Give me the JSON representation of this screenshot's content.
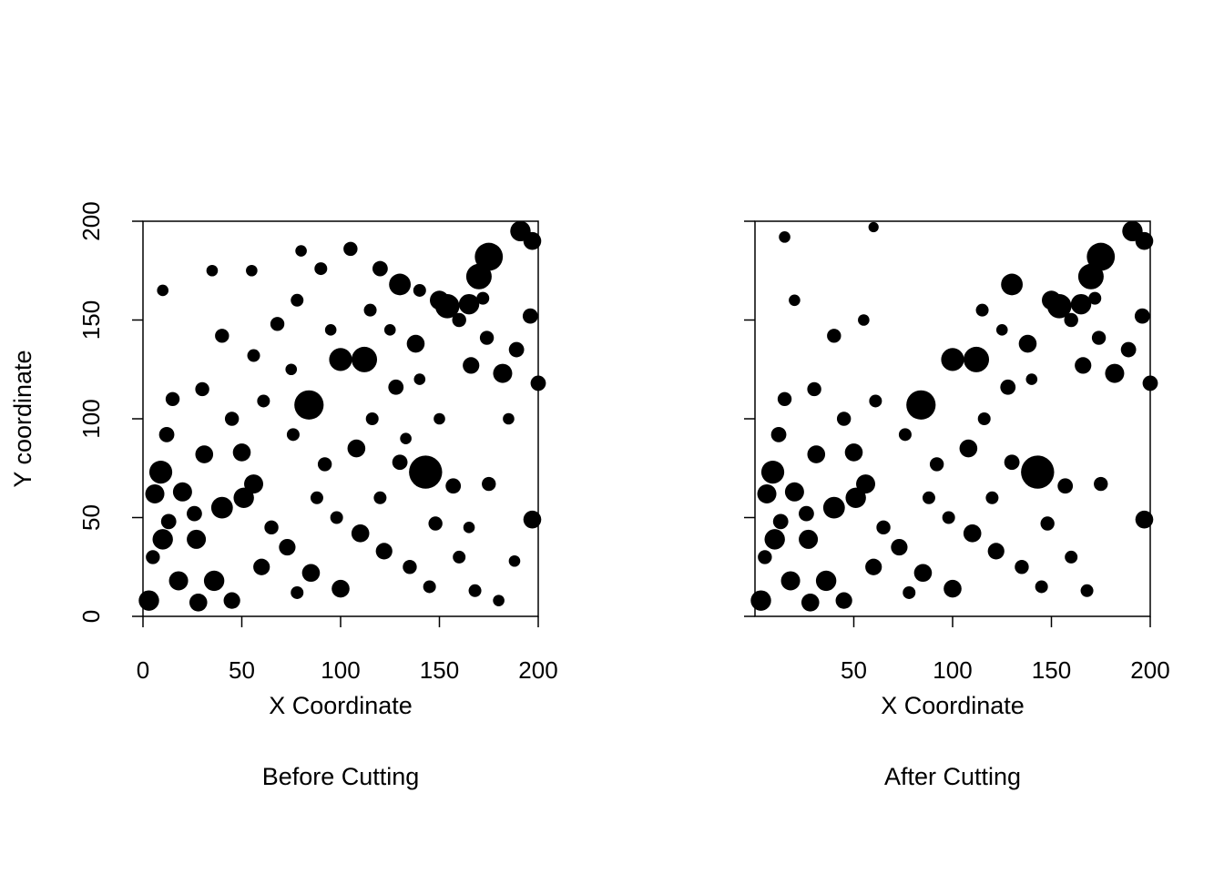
{
  "chart_data": [
    {
      "type": "scatter",
      "xlabel": "X Coordinate",
      "ylabel": "Y coordinate",
      "caption": "Before Cutting",
      "xlim": [
        0,
        200
      ],
      "ylim": [
        0,
        200
      ],
      "xticks": [
        "0",
        "50",
        "100",
        "150",
        "200"
      ],
      "yticks": [
        "0",
        "50",
        "100",
        "150",
        "200"
      ],
      "points": [
        [
          143,
          73,
          2.6
        ],
        [
          84,
          107,
          2.3
        ],
        [
          175,
          182,
          2.2
        ],
        [
          191,
          195,
          1.6
        ],
        [
          170,
          172,
          2.0
        ],
        [
          154,
          157,
          1.9
        ],
        [
          112,
          130,
          2.0
        ],
        [
          100,
          130,
          1.8
        ],
        [
          130,
          168,
          1.7
        ],
        [
          165,
          158,
          1.6
        ],
        [
          182,
          123,
          1.5
        ],
        [
          197,
          49,
          1.4
        ],
        [
          200,
          118,
          1.2
        ],
        [
          197,
          190,
          1.4
        ],
        [
          9,
          73,
          1.8
        ],
        [
          3,
          8,
          1.6
        ],
        [
          18,
          18,
          1.5
        ],
        [
          10,
          39,
          1.6
        ],
        [
          6,
          62,
          1.5
        ],
        [
          20,
          63,
          1.5
        ],
        [
          27,
          39,
          1.5
        ],
        [
          31,
          82,
          1.4
        ],
        [
          40,
          55,
          1.7
        ],
        [
          51,
          60,
          1.6
        ],
        [
          50,
          83,
          1.4
        ],
        [
          56,
          67,
          1.5
        ],
        [
          36,
          18,
          1.6
        ],
        [
          45,
          8,
          1.3
        ],
        [
          28,
          7,
          1.4
        ],
        [
          60,
          25,
          1.3
        ],
        [
          73,
          35,
          1.3
        ],
        [
          85,
          22,
          1.4
        ],
        [
          100,
          14,
          1.4
        ],
        [
          110,
          42,
          1.4
        ],
        [
          122,
          33,
          1.3
        ],
        [
          108,
          85,
          1.4
        ],
        [
          130,
          78,
          1.2
        ],
        [
          157,
          66,
          1.2
        ],
        [
          175,
          67,
          1.1
        ],
        [
          128,
          116,
          1.2
        ],
        [
          138,
          138,
          1.4
        ],
        [
          150,
          160,
          1.5
        ],
        [
          160,
          150,
          1.1
        ],
        [
          166,
          127,
          1.3
        ],
        [
          174,
          141,
          1.1
        ],
        [
          189,
          135,
          1.2
        ],
        [
          196,
          152,
          1.2
        ],
        [
          172,
          161,
          1.0
        ],
        [
          120,
          176,
          1.2
        ],
        [
          105,
          186,
          1.1
        ],
        [
          90,
          176,
          1.0
        ],
        [
          78,
          160,
          1.0
        ],
        [
          68,
          148,
          1.1
        ],
        [
          56,
          132,
          1.0
        ],
        [
          40,
          142,
          1.1
        ],
        [
          30,
          115,
          1.1
        ],
        [
          15,
          110,
          1.1
        ],
        [
          12,
          92,
          1.2
        ],
        [
          26,
          52,
          1.2
        ],
        [
          13,
          48,
          1.2
        ],
        [
          5,
          30,
          1.1
        ],
        [
          45,
          100,
          1.1
        ],
        [
          61,
          109,
          1.0
        ],
        [
          76,
          92,
          1.0
        ],
        [
          92,
          77,
          1.1
        ],
        [
          116,
          100,
          1.0
        ],
        [
          133,
          90,
          0.9
        ],
        [
          148,
          47,
          1.1
        ],
        [
          160,
          30,
          1.0
        ],
        [
          168,
          13,
          1.0
        ],
        [
          180,
          8,
          0.9
        ],
        [
          188,
          28,
          0.9
        ],
        [
          145,
          15,
          1.0
        ],
        [
          135,
          25,
          1.1
        ],
        [
          78,
          12,
          1.0
        ],
        [
          65,
          45,
          1.1
        ],
        [
          88,
          60,
          1.0
        ],
        [
          98,
          50,
          1.0
        ],
        [
          150,
          100,
          0.9
        ],
        [
          120,
          60,
          1.0
        ],
        [
          165,
          45,
          0.9
        ],
        [
          115,
          155,
          1.0
        ],
        [
          95,
          145,
          0.9
        ],
        [
          140,
          120,
          0.9
        ],
        [
          185,
          100,
          0.9
        ],
        [
          75,
          125,
          0.9
        ],
        [
          55,
          175,
          0.9
        ],
        [
          35,
          175,
          0.9
        ],
        [
          10,
          165,
          0.9
        ],
        [
          80,
          185,
          0.9
        ],
        [
          140,
          165,
          1.0
        ],
        [
          125,
          145,
          0.9
        ]
      ]
    },
    {
      "type": "scatter",
      "xlabel": "X Coordinate",
      "caption": "After Cutting",
      "xlim": [
        0,
        200
      ],
      "ylim": [
        0,
        200
      ],
      "xticks": [
        "50",
        "100",
        "150",
        "200"
      ],
      "yticks": [],
      "points": [
        [
          143,
          73,
          2.6
        ],
        [
          84,
          107,
          2.3
        ],
        [
          175,
          182,
          2.2
        ],
        [
          191,
          195,
          1.6
        ],
        [
          170,
          172,
          2.0
        ],
        [
          154,
          157,
          1.9
        ],
        [
          112,
          130,
          2.0
        ],
        [
          100,
          130,
          1.8
        ],
        [
          130,
          168,
          1.7
        ],
        [
          165,
          158,
          1.6
        ],
        [
          182,
          123,
          1.5
        ],
        [
          197,
          49,
          1.4
        ],
        [
          200,
          118,
          1.2
        ],
        [
          197,
          190,
          1.4
        ],
        [
          9,
          73,
          1.8
        ],
        [
          3,
          8,
          1.6
        ],
        [
          18,
          18,
          1.5
        ],
        [
          10,
          39,
          1.6
        ],
        [
          6,
          62,
          1.5
        ],
        [
          20,
          63,
          1.5
        ],
        [
          27,
          39,
          1.5
        ],
        [
          31,
          82,
          1.4
        ],
        [
          40,
          55,
          1.7
        ],
        [
          51,
          60,
          1.6
        ],
        [
          50,
          83,
          1.4
        ],
        [
          56,
          67,
          1.5
        ],
        [
          36,
          18,
          1.6
        ],
        [
          45,
          8,
          1.3
        ],
        [
          28,
          7,
          1.4
        ],
        [
          60,
          25,
          1.3
        ],
        [
          73,
          35,
          1.3
        ],
        [
          85,
          22,
          1.4
        ],
        [
          100,
          14,
          1.4
        ],
        [
          110,
          42,
          1.4
        ],
        [
          122,
          33,
          1.3
        ],
        [
          108,
          85,
          1.4
        ],
        [
          130,
          78,
          1.2
        ],
        [
          157,
          66,
          1.2
        ],
        [
          175,
          67,
          1.1
        ],
        [
          128,
          116,
          1.2
        ],
        [
          138,
          138,
          1.4
        ],
        [
          150,
          160,
          1.5
        ],
        [
          160,
          150,
          1.1
        ],
        [
          166,
          127,
          1.3
        ],
        [
          174,
          141,
          1.1
        ],
        [
          189,
          135,
          1.2
        ],
        [
          196,
          152,
          1.2
        ],
        [
          172,
          161,
          1.0
        ],
        [
          26,
          52,
          1.2
        ],
        [
          13,
          48,
          1.2
        ],
        [
          5,
          30,
          1.1
        ],
        [
          45,
          100,
          1.1
        ],
        [
          61,
          109,
          1.0
        ],
        [
          76,
          92,
          1.0
        ],
        [
          92,
          77,
          1.1
        ],
        [
          116,
          100,
          1.0
        ],
        [
          148,
          47,
          1.1
        ],
        [
          160,
          30,
          1.0
        ],
        [
          168,
          13,
          1.0
        ],
        [
          145,
          15,
          1.0
        ],
        [
          135,
          25,
          1.1
        ],
        [
          78,
          12,
          1.0
        ],
        [
          65,
          45,
          1.1
        ],
        [
          88,
          60,
          1.0
        ],
        [
          98,
          50,
          1.0
        ],
        [
          120,
          60,
          1.0
        ],
        [
          115,
          155,
          1.0
        ],
        [
          140,
          120,
          0.9
        ],
        [
          125,
          145,
          0.9
        ],
        [
          15,
          110,
          1.1
        ],
        [
          12,
          92,
          1.2
        ],
        [
          30,
          115,
          1.1
        ],
        [
          40,
          142,
          1.1
        ],
        [
          55,
          150,
          0.9
        ],
        [
          20,
          160,
          0.9
        ],
        [
          60,
          197,
          0.8
        ],
        [
          15,
          192,
          0.9
        ]
      ]
    }
  ]
}
